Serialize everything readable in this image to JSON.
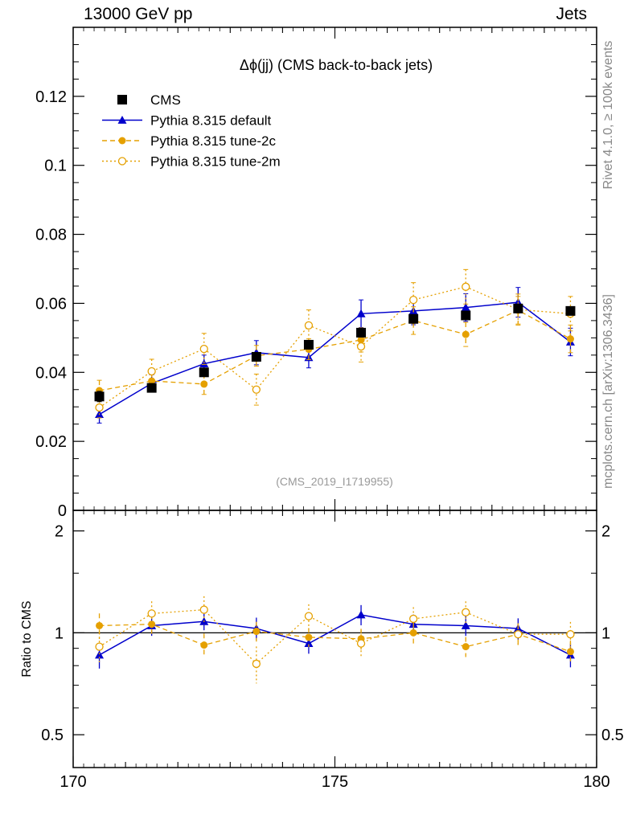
{
  "header": {
    "left": "13000 GeV pp",
    "right": "Jets"
  },
  "side_labels": {
    "rivet": "Rivet 4.1.0, ≥ 100k events",
    "mcplots": "mcplots.cern.ch [arXiv:1306.3436]"
  },
  "chart_data": {
    "type": "scatter",
    "title": "Δϕ(jj) (CMS back-to-back jets)",
    "watermark": "(CMS_2019_I1719955)",
    "xlabel": "",
    "ylabel": "",
    "xlim": [
      170,
      180
    ],
    "ylim": [
      0,
      0.14
    ],
    "ratio_ylabel": "Ratio to CMS",
    "ratio_ylim": [
      0.4,
      2.3
    ],
    "x_ticks": [
      "170",
      "175",
      "180"
    ],
    "y_ticks": [
      "0",
      "0.02",
      "0.04",
      "0.06",
      "0.08",
      "0.1",
      "0.12"
    ],
    "ratio_ticks": [
      "0.5",
      "1",
      "2"
    ],
    "x": [
      170.5,
      171.5,
      172.5,
      173.5,
      174.5,
      175.5,
      176.5,
      177.5,
      178.5,
      179.5
    ],
    "legend": [
      "CMS",
      "Pythia 8.315 default",
      "Pythia 8.315 tune-2c",
      "Pythia 8.315 tune-2m"
    ],
    "series": [
      {
        "name": "CMS",
        "color": "#000000",
        "style": "data",
        "values": [
          0.033,
          0.0355,
          0.04,
          0.0445,
          0.048,
          0.0515,
          0.0555,
          0.0565,
          0.0585,
          0.0578
        ],
        "errors": [
          0.0015,
          0.0012,
          0.0012,
          0.0012,
          0.0012,
          0.0012,
          0.0012,
          0.0012,
          0.0012,
          0.0012
        ]
      },
      {
        "name": "Pythia 8.315 default",
        "color": "#0000cc",
        "style": "solid-triangle",
        "values": [
          0.0278,
          0.0368,
          0.0425,
          0.0457,
          0.0443,
          0.057,
          0.0578,
          0.0588,
          0.0603,
          0.0488
        ],
        "errors": [
          0.0025,
          0.0025,
          0.0025,
          0.0035,
          0.003,
          0.004,
          0.004,
          0.004,
          0.0043,
          0.004
        ],
        "ratio": [
          0.86,
          1.05,
          1.08,
          1.03,
          0.93,
          1.13,
          1.06,
          1.05,
          1.03,
          0.86
        ]
      },
      {
        "name": "Pythia 8.315 tune-2c",
        "color": "#e5a000",
        "style": "dashed-filled-circle",
        "values": [
          0.0347,
          0.0375,
          0.0366,
          0.0448,
          0.0467,
          0.0494,
          0.055,
          0.051,
          0.058,
          0.0497
        ],
        "errors": [
          0.003,
          0.003,
          0.003,
          0.003,
          0.003,
          0.0035,
          0.004,
          0.0035,
          0.004,
          0.004
        ],
        "ratio": [
          1.05,
          1.06,
          0.92,
          1.01,
          0.97,
          0.96,
          1.0,
          0.91,
          0.99,
          0.88
        ]
      },
      {
        "name": "Pythia 8.315 tune-2m",
        "color": "#e5a000",
        "style": "dotted-open-circle",
        "values": [
          0.0298,
          0.0403,
          0.0468,
          0.035,
          0.0536,
          0.0475,
          0.061,
          0.0648,
          0.0582,
          0.057
        ],
        "errors": [
          0.003,
          0.0035,
          0.0045,
          0.0045,
          0.0045,
          0.0045,
          0.005,
          0.005,
          0.0045,
          0.005
        ],
        "ratio": [
          0.91,
          1.14,
          1.17,
          0.81,
          1.12,
          0.93,
          1.1,
          1.15,
          0.99,
          0.99
        ]
      }
    ]
  }
}
